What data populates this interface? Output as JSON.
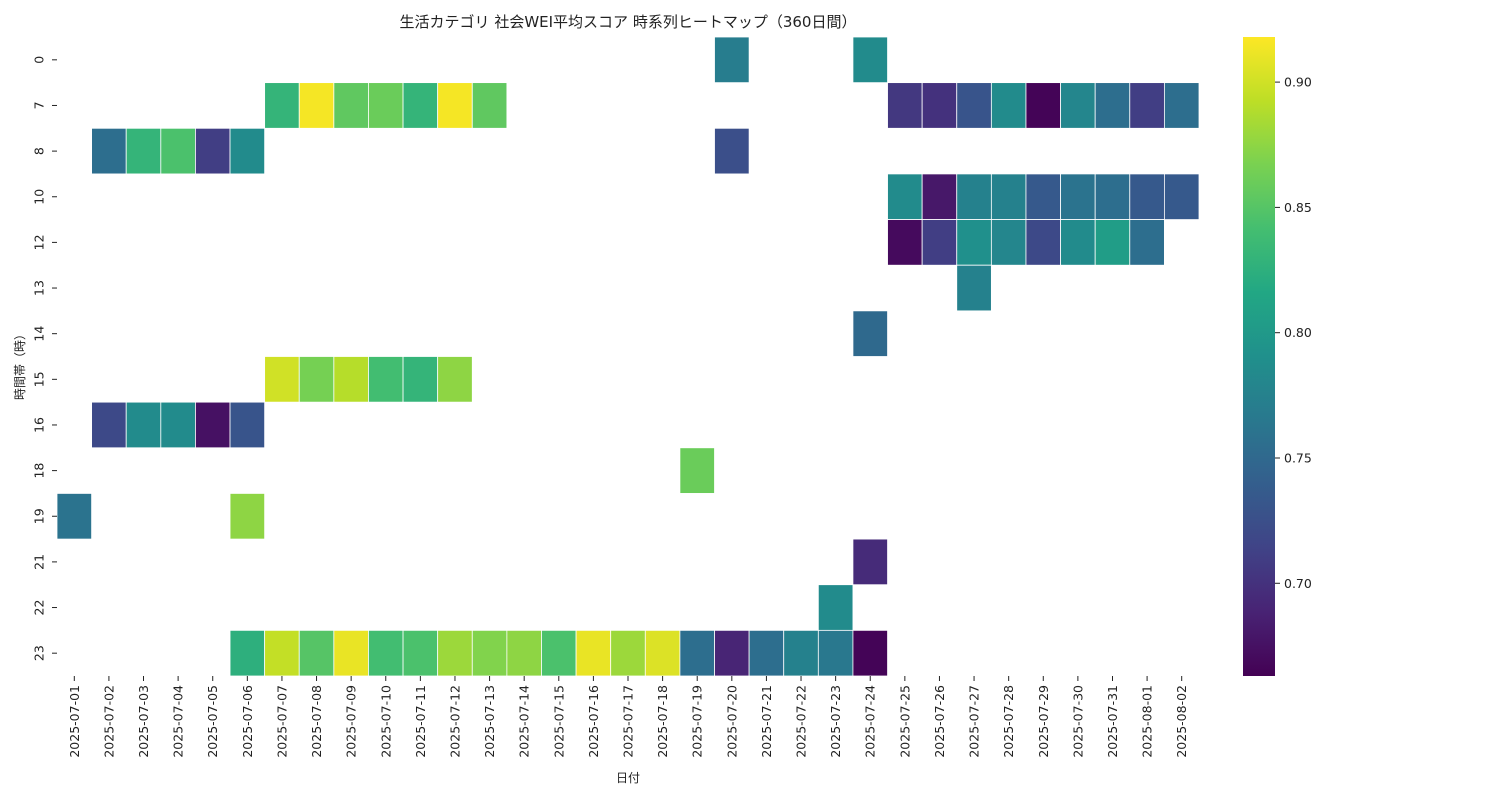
{
  "chart_data": {
    "type": "heatmap",
    "title": "生活カテゴリ 社会WEI平均スコア 時系列ヒートマップ（360日間）",
    "xlabel": "日付",
    "ylabel": "時間帯（時）",
    "x": [
      "2025-07-01",
      "2025-07-02",
      "2025-07-03",
      "2025-07-04",
      "2025-07-05",
      "2025-07-06",
      "2025-07-07",
      "2025-07-08",
      "2025-07-09",
      "2025-07-10",
      "2025-07-11",
      "2025-07-12",
      "2025-07-13",
      "2025-07-14",
      "2025-07-15",
      "2025-07-16",
      "2025-07-17",
      "2025-07-18",
      "2025-07-19",
      "2025-07-20",
      "2025-07-21",
      "2025-07-22",
      "2025-07-23",
      "2025-07-24",
      "2025-07-25",
      "2025-07-26",
      "2025-07-27",
      "2025-07-28",
      "2025-07-29",
      "2025-07-30",
      "2025-07-31",
      "2025-08-01",
      "2025-08-02"
    ],
    "y": [
      "0",
      "7",
      "8",
      "10",
      "12",
      "13",
      "14",
      "15",
      "16",
      "18",
      "19",
      "21",
      "22",
      "23"
    ],
    "values": [
      [
        null,
        null,
        null,
        null,
        null,
        null,
        null,
        null,
        null,
        null,
        null,
        null,
        null,
        null,
        null,
        null,
        null,
        null,
        null,
        0.77,
        null,
        null,
        null,
        0.785,
        null,
        null,
        null,
        null,
        null,
        null,
        null,
        null,
        null
      ],
      [
        null,
        null,
        null,
        null,
        null,
        null,
        0.83,
        0.915,
        0.855,
        0.86,
        0.83,
        0.915,
        0.855,
        null,
        null,
        null,
        null,
        null,
        null,
        null,
        null,
        null,
        null,
        null,
        0.705,
        0.7,
        0.73,
        0.785,
        0.665,
        0.78,
        0.755,
        0.71,
        0.755
      ],
      [
        null,
        0.755,
        0.83,
        0.845,
        0.71,
        0.785,
        null,
        null,
        null,
        null,
        null,
        null,
        null,
        null,
        null,
        null,
        null,
        null,
        null,
        0.725,
        null,
        null,
        null,
        null,
        null,
        null,
        null,
        null,
        null,
        null,
        null,
        null,
        null
      ],
      [
        null,
        null,
        null,
        null,
        null,
        null,
        null,
        null,
        null,
        null,
        null,
        null,
        null,
        null,
        null,
        null,
        null,
        null,
        null,
        null,
        null,
        null,
        null,
        null,
        0.785,
        0.68,
        0.775,
        0.775,
        0.735,
        0.76,
        0.755,
        0.735,
        0.735
      ],
      [
        null,
        null,
        null,
        null,
        null,
        null,
        null,
        null,
        null,
        null,
        null,
        null,
        null,
        null,
        null,
        null,
        null,
        null,
        null,
        null,
        null,
        null,
        null,
        null,
        0.67,
        0.71,
        0.79,
        0.78,
        0.72,
        0.785,
        0.805,
        0.755,
        null
      ],
      [
        null,
        null,
        null,
        null,
        null,
        null,
        null,
        null,
        null,
        null,
        null,
        null,
        null,
        null,
        null,
        null,
        null,
        null,
        null,
        null,
        null,
        null,
        null,
        null,
        null,
        null,
        0.775,
        null,
        null,
        null,
        null,
        null,
        null
      ],
      [
        null,
        null,
        null,
        null,
        null,
        null,
        null,
        null,
        null,
        null,
        null,
        null,
        null,
        null,
        null,
        null,
        null,
        null,
        null,
        null,
        null,
        null,
        null,
        0.75,
        null,
        null,
        null,
        null,
        null,
        null,
        null,
        null,
        null
      ],
      [
        null,
        null,
        null,
        null,
        null,
        null,
        0.9,
        0.865,
        0.89,
        0.84,
        0.83,
        0.875,
        null,
        null,
        null,
        null,
        null,
        null,
        null,
        null,
        null,
        null,
        null,
        null,
        null,
        null,
        null,
        null,
        null,
        null,
        null,
        null,
        null
      ],
      [
        null,
        0.72,
        0.785,
        0.785,
        0.675,
        0.73,
        null,
        null,
        null,
        null,
        null,
        null,
        null,
        null,
        null,
        null,
        null,
        null,
        null,
        null,
        null,
        null,
        null,
        null,
        null,
        null,
        null,
        null,
        null,
        null,
        null,
        null,
        null
      ],
      [
        null,
        null,
        null,
        null,
        null,
        null,
        null,
        null,
        null,
        null,
        null,
        null,
        null,
        null,
        null,
        null,
        null,
        null,
        0.86,
        null,
        null,
        null,
        null,
        null,
        null,
        null,
        null,
        null,
        null,
        null,
        null,
        null,
        null
      ],
      [
        0.76,
        null,
        null,
        null,
        null,
        0.875,
        null,
        null,
        null,
        null,
        null,
        null,
        null,
        null,
        null,
        null,
        null,
        null,
        null,
        null,
        null,
        null,
        null,
        null,
        null,
        null,
        null,
        null,
        null,
        null,
        null,
        null,
        null
      ],
      [
        null,
        null,
        null,
        null,
        null,
        null,
        null,
        null,
        null,
        null,
        null,
        null,
        null,
        null,
        null,
        null,
        null,
        null,
        null,
        null,
        null,
        null,
        null,
        0.695,
        null,
        null,
        null,
        null,
        null,
        null,
        null,
        null,
        null
      ],
      [
        null,
        null,
        null,
        null,
        null,
        null,
        null,
        null,
        null,
        null,
        null,
        null,
        null,
        null,
        null,
        null,
        null,
        null,
        null,
        null,
        null,
        null,
        0.785,
        null,
        null,
        null,
        null,
        null,
        null,
        null,
        null,
        null,
        null
      ],
      [
        null,
        null,
        null,
        null,
        null,
        0.825,
        0.895,
        0.85,
        0.91,
        0.84,
        0.845,
        0.88,
        0.87,
        0.875,
        0.845,
        0.91,
        0.88,
        0.905,
        0.755,
        0.69,
        0.755,
        0.775,
        0.765,
        0.665,
        null,
        null,
        null,
        null,
        null,
        null,
        null,
        null,
        null
      ]
    ],
    "colormap": "viridis",
    "colorbar": {
      "min": 0.663,
      "max": 0.918,
      "ticks": [
        0.7,
        0.75,
        0.8,
        0.85,
        0.9
      ],
      "tick_labels": [
        "0.70",
        "0.75",
        "0.80",
        "0.85",
        "0.90"
      ]
    }
  }
}
